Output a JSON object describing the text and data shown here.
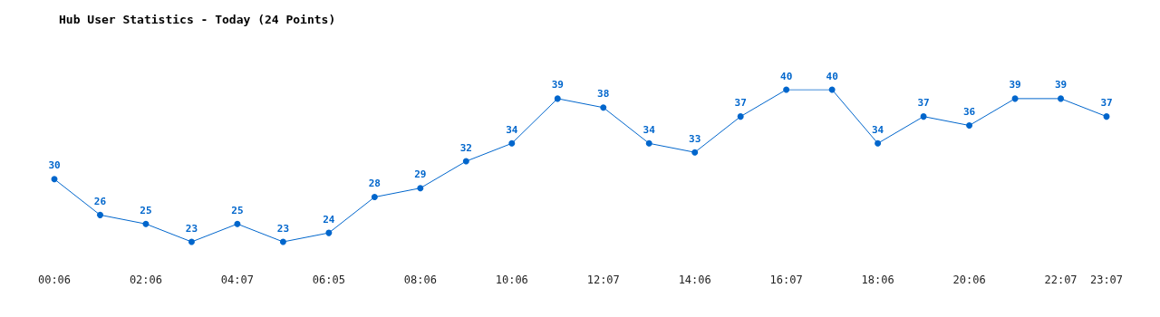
{
  "chart_data": {
    "type": "line",
    "title": "Hub User Statistics - Today (24 Points)",
    "categories": [
      "00:06",
      null,
      "02:06",
      null,
      "04:07",
      null,
      "06:05",
      null,
      "08:06",
      null,
      "10:06",
      null,
      "12:07",
      null,
      "14:06",
      null,
      "16:07",
      null,
      "18:06",
      null,
      "20:06",
      null,
      "22:07",
      "23:07"
    ],
    "values": [
      30,
      26,
      25,
      23,
      25,
      23,
      24,
      28,
      29,
      32,
      34,
      39,
      38,
      34,
      33,
      37,
      40,
      40,
      34,
      37,
      36,
      39,
      39,
      37
    ],
    "color": "#0066cc",
    "data_labels": true,
    "marker": "circle",
    "tick_labels": "x"
  }
}
